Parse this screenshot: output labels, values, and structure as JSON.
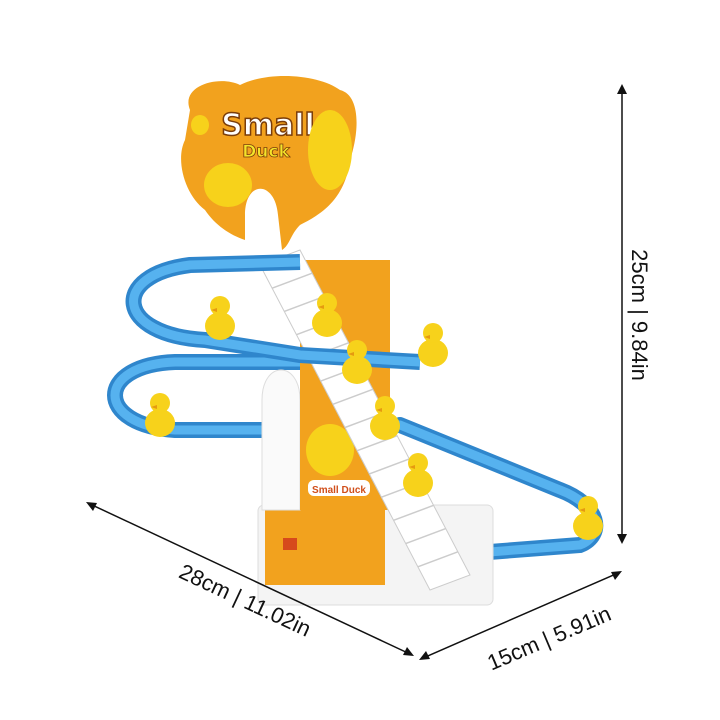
{
  "product": {
    "sign_title": "Small",
    "sign_subtitle": "Duck",
    "base_label": "Small Duck"
  },
  "dimensions": {
    "height": "25cm | 9.84in",
    "length": "28cm | 11.02in",
    "width": "15cm | 5.91in"
  },
  "colors": {
    "track": "#3d9be0",
    "sign": "#f2a21e",
    "duck": "#f7d21b",
    "stairs": "#ffffff"
  }
}
